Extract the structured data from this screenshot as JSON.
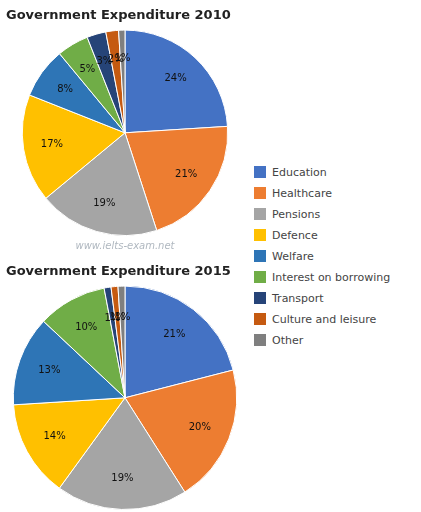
{
  "chart_data": [
    {
      "type": "pie",
      "title": "Government Expenditure 2010",
      "annotation": "www.ielts-exam.net",
      "categories": [
        "Education",
        "Healthcare",
        "Pensions",
        "Defence",
        "Welfare",
        "Interest on borrowing",
        "Transport",
        "Culture and leisure",
        "Other"
      ],
      "values": [
        24,
        21,
        19,
        17,
        8,
        5,
        3,
        2,
        1
      ],
      "value_labels": [
        "24%",
        "21%",
        "19%",
        "17%",
        "8%",
        "5%",
        "3%",
        "2%",
        "1%"
      ],
      "colors": [
        "#4472C4",
        "#ED7D31",
        "#A5A5A5",
        "#FFC000",
        "#2E75B6",
        "#70AD47",
        "#264478",
        "#C55A11",
        "#7F7F7F"
      ],
      "data_labels": true,
      "legend": "right"
    },
    {
      "type": "pie",
      "title": "Government Expenditure 2015",
      "categories": [
        "Education",
        "Healthcare",
        "Pensions",
        "Defence",
        "Welfare",
        "Interest on borrowing",
        "Transport",
        "Culture and leisure",
        "Other"
      ],
      "values": [
        21,
        20,
        19,
        14,
        13,
        10,
        1,
        1,
        1
      ],
      "value_labels": [
        "21%",
        "20%",
        "19%",
        "14%",
        "13%",
        "10%",
        "1%",
        "1%",
        "1%"
      ],
      "colors": [
        "#4472C4",
        "#ED7D31",
        "#A5A5A5",
        "#FFC000",
        "#2E75B6",
        "#70AD47",
        "#264478",
        "#C55A11",
        "#7F7F7F"
      ],
      "data_labels": true
    }
  ]
}
